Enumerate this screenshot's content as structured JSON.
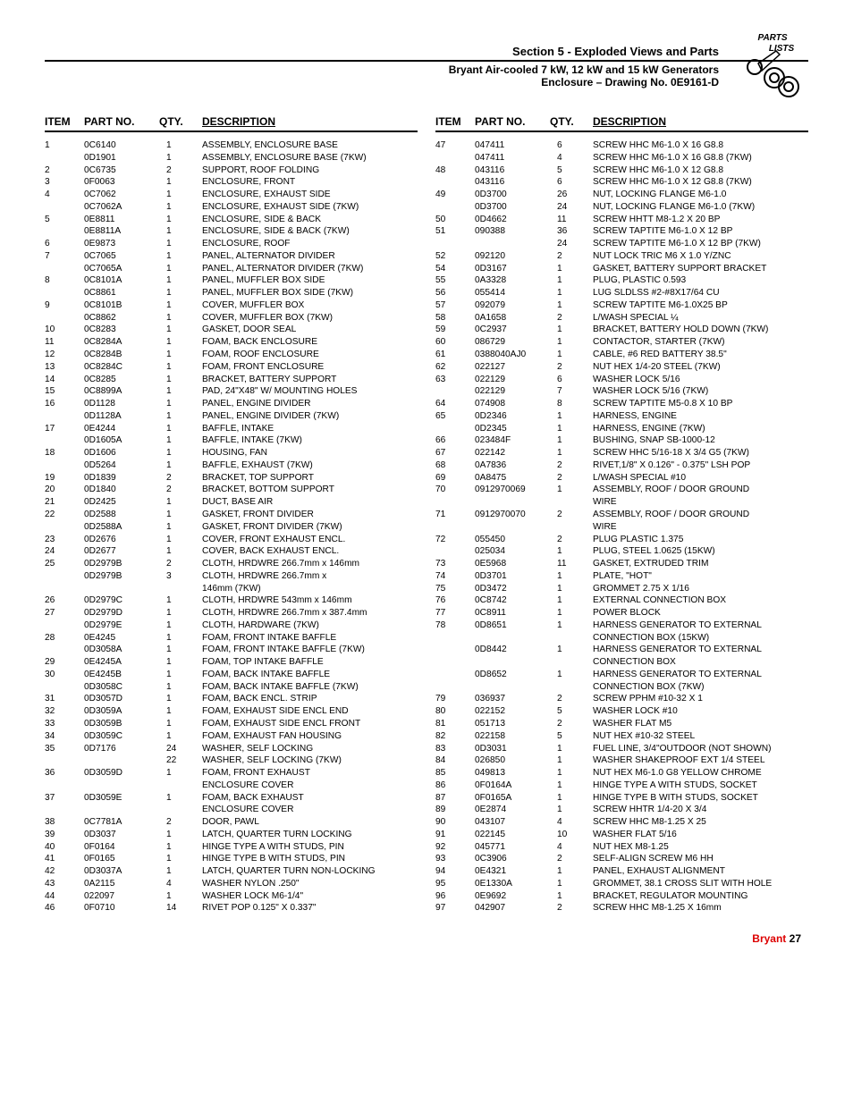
{
  "header": {
    "section_title": "Section 5 - Exploded Views and Parts",
    "subtitle": "Bryant Air-cooled 7 kW, 12 kW and 15 kW Generators",
    "drawing_title": "Enclosure – Drawing No. 0E9161-D",
    "icon_label_top": "PARTS",
    "icon_label_bottom": "LISTS"
  },
  "col_headers": {
    "item": "ITEM",
    "part": "PART NO.",
    "qty": "QTY.",
    "desc": "DESCRIPTION"
  },
  "left_rows": [
    {
      "item": "1",
      "part": "0C6140",
      "qty": "1",
      "desc": "ASSEMBLY, ENCLOSURE BASE"
    },
    {
      "item": "",
      "part": "0D1901",
      "qty": "1",
      "desc": "ASSEMBLY, ENCLOSURE BASE (7KW)"
    },
    {
      "item": "2",
      "part": "0C6735",
      "qty": "2",
      "desc": "SUPPORT,  ROOF FOLDING"
    },
    {
      "item": "3",
      "part": "0F0063",
      "qty": "1",
      "desc": "ENCLOSURE, FRONT"
    },
    {
      "item": "4",
      "part": "0C7062",
      "qty": "1",
      "desc": "ENCLOSURE, EXHAUST SIDE"
    },
    {
      "item": "",
      "part": "0C7062A",
      "qty": "1",
      "desc": "ENCLOSURE, EXHAUST SIDE (7KW)"
    },
    {
      "item": "5",
      "part": "0E8811",
      "qty": "1",
      "desc": "ENCLOSURE, SIDE & BACK"
    },
    {
      "item": "",
      "part": "0E8811A",
      "qty": "1",
      "desc": "ENCLOSURE, SIDE & BACK (7KW)"
    },
    {
      "item": "6",
      "part": "0E9873",
      "qty": "1",
      "desc": "ENCLOSURE, ROOF"
    },
    {
      "item": "7",
      "part": "0C7065",
      "qty": "1",
      "desc": "PANEL, ALTERNATOR DIVIDER"
    },
    {
      "item": "",
      "part": "0C7065A",
      "qty": "1",
      "desc": "PANEL, ALTERNATOR DIVIDER (7KW)"
    },
    {
      "item": "8",
      "part": "0C8101A",
      "qty": "1",
      "desc": "PANEL, MUFFLER BOX SIDE"
    },
    {
      "item": "",
      "part": "0C8861",
      "qty": "1",
      "desc": "PANEL, MUFFLER BOX SIDE (7KW)"
    },
    {
      "item": "9",
      "part": "0C8101B",
      "qty": "1",
      "desc": "COVER, MUFFLER BOX"
    },
    {
      "item": "",
      "part": "0C8862",
      "qty": "1",
      "desc": "COVER, MUFFLER BOX (7KW)"
    },
    {
      "item": "10",
      "part": "0C8283",
      "qty": "1",
      "desc": "GASKET, DOOR SEAL"
    },
    {
      "item": "11",
      "part": "0C8284A",
      "qty": "1",
      "desc": "FOAM, BACK ENCLOSURE"
    },
    {
      "item": "12",
      "part": "0C8284B",
      "qty": "1",
      "desc": "FOAM, ROOF ENCLOSURE"
    },
    {
      "item": "13",
      "part": "0C8284C",
      "qty": "1",
      "desc": "FOAM, FRONT ENCLOSURE"
    },
    {
      "item": "14",
      "part": "0C8285",
      "qty": "1",
      "desc": "BRACKET, BATTERY SUPPORT"
    },
    {
      "item": "15",
      "part": "0C8899A",
      "qty": "1",
      "desc": "PAD, 24\"X48\" W/ MOUNTING HOLES"
    },
    {
      "item": "16",
      "part": "0D1128",
      "qty": "1",
      "desc": "PANEL, ENGINE DIVIDER"
    },
    {
      "item": "",
      "part": "0D1128A",
      "qty": "1",
      "desc": "PANEL, ENGINE DIVIDER (7KW)"
    },
    {
      "item": "17",
      "part": "0E4244",
      "qty": "1",
      "desc": "BAFFLE, INTAKE"
    },
    {
      "item": "",
      "part": "0D1605A",
      "qty": "1",
      "desc": "BAFFLE, INTAKE (7KW)"
    },
    {
      "item": "18",
      "part": "0D1606",
      "qty": "1",
      "desc": "HOUSING, FAN"
    },
    {
      "item": "",
      "part": "0D5264",
      "qty": "1",
      "desc": "BAFFLE, EXHAUST (7KW)"
    },
    {
      "item": "19",
      "part": "0D1839",
      "qty": "2",
      "desc": "BRACKET, TOP SUPPORT"
    },
    {
      "item": "20",
      "part": "0D1840",
      "qty": "2",
      "desc": "BRACKET, BOTTOM SUPPORT"
    },
    {
      "item": "21",
      "part": "0D2425",
      "qty": "1",
      "desc": "DUCT, BASE AIR"
    },
    {
      "item": "22",
      "part": "0D2588",
      "qty": "1",
      "desc": "GASKET, FRONT DIVIDER"
    },
    {
      "item": "",
      "part": "0D2588A",
      "qty": "1",
      "desc": "GASKET, FRONT DIVIDER (7KW)"
    },
    {
      "item": "23",
      "part": "0D2676",
      "qty": "1",
      "desc": "COVER, FRONT EXHAUST ENCL."
    },
    {
      "item": "24",
      "part": "0D2677",
      "qty": "1",
      "desc": "COVER, BACK EXHAUST ENCL."
    },
    {
      "item": "25",
      "part": "0D2979B",
      "qty": "2",
      "desc": "CLOTH, HRDWRE 266.7mm x 146mm"
    },
    {
      "item": "",
      "part": "0D2979B",
      "qty": "3",
      "desc": "CLOTH, HRDWRE 266.7mm x"
    },
    {
      "item": "",
      "part": "",
      "qty": "",
      "desc": "146mm (7KW)"
    },
    {
      "item": "26",
      "part": "0D2979C",
      "qty": "1",
      "desc": "CLOTH, HRDWRE 543mm x 146mm"
    },
    {
      "item": "27",
      "part": "0D2979D",
      "qty": "1",
      "desc": "CLOTH, HRDWRE 266.7mm x 387.4mm"
    },
    {
      "item": "",
      "part": "0D2979E",
      "qty": "1",
      "desc": "CLOTH, HARDWARE (7KW)"
    },
    {
      "item": "28",
      "part": "0E4245",
      "qty": "1",
      "desc": "FOAM, FRONT INTAKE BAFFLE"
    },
    {
      "item": "",
      "part": "0D3058A",
      "qty": "1",
      "desc": "FOAM, FRONT INTAKE BAFFLE (7KW)"
    },
    {
      "item": "29",
      "part": "0E4245A",
      "qty": "1",
      "desc": "FOAM, TOP INTAKE BAFFLE"
    },
    {
      "item": "30",
      "part": "0E4245B",
      "qty": "1",
      "desc": "FOAM, BACK INTAKE BAFFLE"
    },
    {
      "item": "",
      "part": "0D3058C",
      "qty": "1",
      "desc": "FOAM, BACK INTAKE BAFFLE (7KW)"
    },
    {
      "item": "31",
      "part": "0D3057D",
      "qty": "1",
      "desc": "FOAM, BACK ENCL. STRIP"
    },
    {
      "item": "32",
      "part": "0D3059A",
      "qty": "1",
      "desc": "FOAM, EXHAUST SIDE ENCL END"
    },
    {
      "item": "33",
      "part": "0D3059B",
      "qty": "1",
      "desc": "FOAM, EXHAUST SIDE ENCL FRONT"
    },
    {
      "item": "34",
      "part": "0D3059C",
      "qty": "1",
      "desc": "FOAM, EXHAUST FAN HOUSING"
    },
    {
      "item": "35",
      "part": "0D7176",
      "qty": "24",
      "desc": "WASHER, SELF LOCKING"
    },
    {
      "item": "",
      "part": "",
      "qty": "22",
      "desc": "WASHER, SELF LOCKING (7KW)"
    },
    {
      "item": "36",
      "part": "0D3059D",
      "qty": "1",
      "desc": "FOAM, FRONT EXHAUST"
    },
    {
      "item": "",
      "part": "",
      "qty": "",
      "desc": "ENCLOSURE COVER"
    },
    {
      "item": "37",
      "part": "0D3059E",
      "qty": "1",
      "desc": "FOAM, BACK EXHAUST"
    },
    {
      "item": "",
      "part": "",
      "qty": "",
      "desc": "ENCLOSURE COVER"
    },
    {
      "item": "38",
      "part": "0C7781A",
      "qty": "2",
      "desc": "DOOR, PAWL"
    },
    {
      "item": "39",
      "part": "0D3037",
      "qty": "1",
      "desc": "LATCH, QUARTER TURN LOCKING"
    },
    {
      "item": "40",
      "part": "0F0164",
      "qty": "1",
      "desc": "HINGE TYPE A WITH STUDS, PIN"
    },
    {
      "item": "41",
      "part": "0F0165",
      "qty": "1",
      "desc": "HINGE TYPE B WITH STUDS, PIN"
    },
    {
      "item": "42",
      "part": "0D3037A",
      "qty": "1",
      "desc": "LATCH, QUARTER TURN NON-LOCKING"
    },
    {
      "item": "43",
      "part": "0A2115",
      "qty": "4",
      "desc": "WASHER NYLON .250\""
    },
    {
      "item": "44",
      "part": "022097",
      "qty": "1",
      "desc": "WASHER LOCK M6-1/4\""
    },
    {
      "item": "46",
      "part": "0F0710",
      "qty": "14",
      "desc": "RIVET POP 0.125\" X 0.337\""
    }
  ],
  "right_rows": [
    {
      "item": "47",
      "part": "047411",
      "qty": "6",
      "desc": "SCREW HHC M6-1.0 X 16 G8.8"
    },
    {
      "item": "",
      "part": "047411",
      "qty": "4",
      "desc": "SCREW HHC M6-1.0 X 16 G8.8 (7KW)"
    },
    {
      "item": "48",
      "part": "043116",
      "qty": "5",
      "desc": "SCREW HHC M6-1.0 X 12 G8.8"
    },
    {
      "item": "",
      "part": "043116",
      "qty": "6",
      "desc": "SCREW HHC M6-1.0 X 12 G8.8 (7KW)"
    },
    {
      "item": "49",
      "part": "0D3700",
      "qty": "26",
      "desc": "NUT, LOCKING FLANGE M6-1.0"
    },
    {
      "item": "",
      "part": "0D3700",
      "qty": "24",
      "desc": "NUT, LOCKING FLANGE M6-1.0 (7KW)"
    },
    {
      "item": "50",
      "part": "0D4662",
      "qty": "11",
      "desc": "SCREW HHTT M8-1.2 X 20 BP"
    },
    {
      "item": "51",
      "part": "090388",
      "qty": "36",
      "desc": "SCREW TAPTITE M6-1.0 X 12 BP"
    },
    {
      "item": "",
      "part": "",
      "qty": "24",
      "desc": "SCREW TAPTITE M6-1.0 X 12 BP (7KW)"
    },
    {
      "item": "52",
      "part": "092120",
      "qty": "2",
      "desc": "NUT LOCK TRIC M6 X 1.0 Y/ZNC"
    },
    {
      "item": "54",
      "part": "0D3167",
      "qty": "1",
      "desc": "GASKET, BATTERY SUPPORT BRACKET"
    },
    {
      "item": "55",
      "part": "0A3328",
      "qty": "1",
      "desc": "PLUG, PLASTIC 0.593"
    },
    {
      "item": "56",
      "part": "055414",
      "qty": "1",
      "desc": "LUG SLDLSS #2-#8X17/64 CU"
    },
    {
      "item": "57",
      "part": "092079",
      "qty": "1",
      "desc": "SCREW TAPTITE M6-1.0X25 BP"
    },
    {
      "item": "58",
      "part": "0A1658",
      "qty": "2",
      "desc": "L/WASH SPECIAL ¼"
    },
    {
      "item": "59",
      "part": "0C2937",
      "qty": "1",
      "desc": "BRACKET, BATTERY HOLD DOWN (7KW)"
    },
    {
      "item": "60",
      "part": "086729",
      "qty": "1",
      "desc": "CONTACTOR, STARTER (7KW)"
    },
    {
      "item": "61",
      "part": "0388040AJ0",
      "qty": "1",
      "desc": "CABLE, #6 RED BATTERY 38.5\""
    },
    {
      "item": "62",
      "part": "022127",
      "qty": "2",
      "desc": "NUT HEX 1/4-20 STEEL (7KW)"
    },
    {
      "item": "63",
      "part": "022129",
      "qty": "6",
      "desc": "WASHER LOCK 5/16"
    },
    {
      "item": "",
      "part": "022129",
      "qty": "7",
      "desc": "WASHER LOCK 5/16 (7KW)"
    },
    {
      "item": "64",
      "part": "074908",
      "qty": "8",
      "desc": "SCREW TAPTITE M5-0.8 X 10 BP"
    },
    {
      "item": "65",
      "part": "0D2346",
      "qty": "1",
      "desc": "HARNESS, ENGINE"
    },
    {
      "item": "",
      "part": "0D2345",
      "qty": "1",
      "desc": "HARNESS, ENGINE (7KW)"
    },
    {
      "item": "66",
      "part": "023484F",
      "qty": "1",
      "desc": "BUSHING, SNAP SB-1000-12"
    },
    {
      "item": "67",
      "part": "022142",
      "qty": "1",
      "desc": "SCREW HHC 5/16-18 X 3/4 G5 (7KW)"
    },
    {
      "item": "68",
      "part": "0A7836",
      "qty": "2",
      "desc": "RIVET,1/8\" X 0.126\" - 0.375\" LSH POP"
    },
    {
      "item": "69",
      "part": "0A8475",
      "qty": "2",
      "desc": "L/WASH SPECIAL #10"
    },
    {
      "item": "70",
      "part": "0912970069",
      "qty": "1",
      "desc": "ASSEMBLY, ROOF / DOOR GROUND"
    },
    {
      "item": "",
      "part": "",
      "qty": "",
      "desc": "WIRE"
    },
    {
      "item": "71",
      "part": "0912970070",
      "qty": "2",
      "desc": "ASSEMBLY, ROOF / DOOR GROUND"
    },
    {
      "item": "",
      "part": "",
      "qty": "",
      "desc": "WIRE"
    },
    {
      "item": "72",
      "part": "055450",
      "qty": "2",
      "desc": "PLUG PLASTIC 1.375"
    },
    {
      "item": "",
      "part": "025034",
      "qty": "1",
      "desc": "PLUG, STEEL 1.0625 (15KW)"
    },
    {
      "item": "73",
      "part": "0E5968",
      "qty": "11",
      "desc": "GASKET, EXTRUDED TRIM"
    },
    {
      "item": "74",
      "part": "0D3701",
      "qty": "1",
      "desc": "PLATE, \"HOT\""
    },
    {
      "item": "75",
      "part": "0D3472",
      "qty": "1",
      "desc": "GROMMET 2.75 X 1/16"
    },
    {
      "item": "76",
      "part": "0C8742",
      "qty": "1",
      "desc": "EXTERNAL CONNECTION BOX"
    },
    {
      "item": "77",
      "part": "0C8911",
      "qty": "1",
      "desc": "POWER BLOCK"
    },
    {
      "item": "78",
      "part": "0D8651",
      "qty": "1",
      "desc": "HARNESS GENERATOR TO EXTERNAL"
    },
    {
      "item": "",
      "part": "",
      "qty": "",
      "desc": "CONNECTION BOX (15KW)"
    },
    {
      "item": "",
      "part": "0D8442",
      "qty": "1",
      "desc": "HARNESS GENERATOR TO EXTERNAL"
    },
    {
      "item": "",
      "part": "",
      "qty": "",
      "desc": "CONNECTION BOX"
    },
    {
      "item": "",
      "part": "0D8652",
      "qty": "1",
      "desc": "HARNESS GENERATOR TO EXTERNAL"
    },
    {
      "item": "",
      "part": "",
      "qty": "",
      "desc": "CONNECTION BOX (7KW)"
    },
    {
      "item": "79",
      "part": "036937",
      "qty": "2",
      "desc": "SCREW PPHM #10-32 X 1"
    },
    {
      "item": "80",
      "part": "022152",
      "qty": "5",
      "desc": "WASHER LOCK #10"
    },
    {
      "item": "81",
      "part": "051713",
      "qty": "2",
      "desc": "WASHER FLAT M5"
    },
    {
      "item": "82",
      "part": "022158",
      "qty": "5",
      "desc": "NUT HEX #10-32 STEEL"
    },
    {
      "item": "83",
      "part": "0D3031",
      "qty": "1",
      "desc": "FUEL LINE, 3/4\"OUTDOOR (NOT SHOWN)"
    },
    {
      "item": "84",
      "part": "026850",
      "qty": "1",
      "desc": "WASHER SHAKEPROOF EXT 1/4 STEEL"
    },
    {
      "item": "85",
      "part": "049813",
      "qty": "1",
      "desc": "NUT HEX M6-1.0 G8 YELLOW CHROME"
    },
    {
      "item": "86",
      "part": "0F0164A",
      "qty": "1",
      "desc": "HINGE TYPE A WITH STUDS, SOCKET"
    },
    {
      "item": "87",
      "part": "0F0165A",
      "qty": "1",
      "desc": "HINGE TYPE B WITH STUDS, SOCKET"
    },
    {
      "item": "89",
      "part": "0E2874",
      "qty": "1",
      "desc": "SCREW HHTR 1/4-20 X 3/4"
    },
    {
      "item": "90",
      "part": "043107",
      "qty": "4",
      "desc": "SCREW HHC M8-1.25 X 25"
    },
    {
      "item": "91",
      "part": "022145",
      "qty": "10",
      "desc": "WASHER FLAT 5/16"
    },
    {
      "item": "92",
      "part": "045771",
      "qty": "4",
      "desc": "NUT HEX M8-1.25"
    },
    {
      "item": "93",
      "part": "0C3906",
      "qty": "2",
      "desc": "SELF-ALIGN SCREW M6 HH"
    },
    {
      "item": "94",
      "part": "0E4321",
      "qty": "1",
      "desc": "PANEL, EXHAUST ALIGNMENT"
    },
    {
      "item": "95",
      "part": "0E1330A",
      "qty": "1",
      "desc": "GROMMET, 38.1 CROSS SLIT WITH HOLE"
    },
    {
      "item": "96",
      "part": "0E9692",
      "qty": "1",
      "desc": "BRACKET, REGULATOR MOUNTING"
    },
    {
      "item": "97",
      "part": "042907",
      "qty": "2",
      "desc": "SCREW HHC M8-1.25 X 16mm"
    }
  ],
  "footer": {
    "brand": "Bryant",
    "page": "27"
  }
}
